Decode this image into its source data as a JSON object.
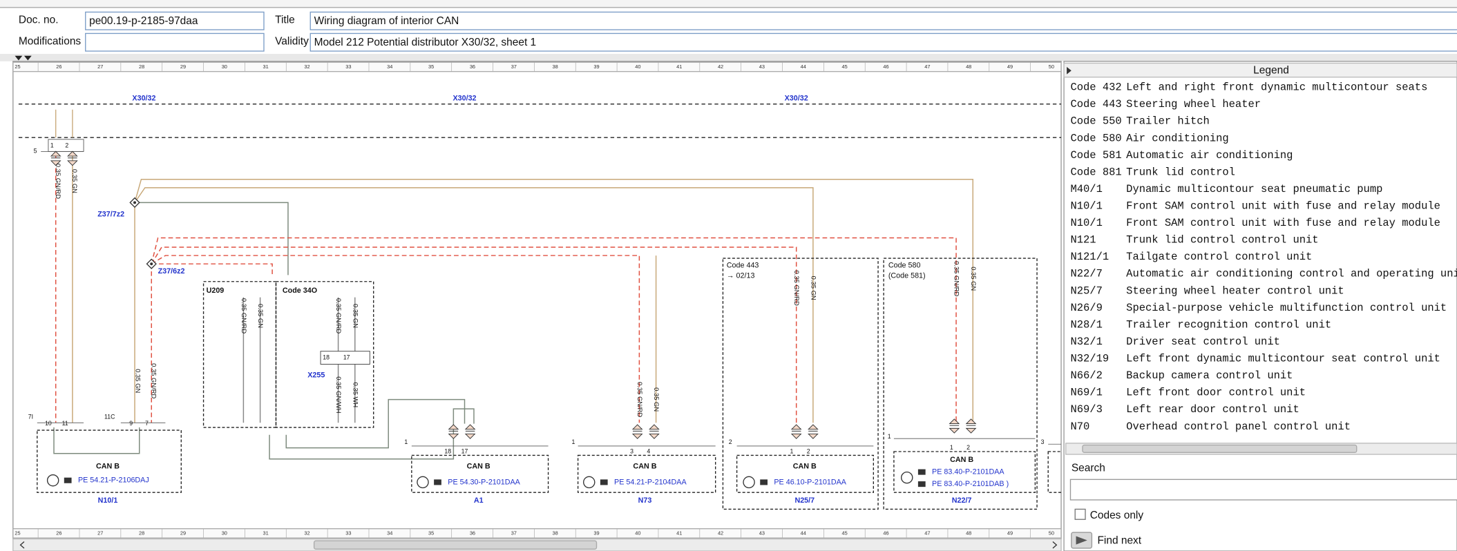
{
  "header": {
    "doc_no_label": "Doc. no.",
    "doc_no": "pe00.19-p-2185-97daa",
    "title_label": "Title",
    "title": "Wiring diagram of interior CAN",
    "modifications_label": "Modifications",
    "validity_label": "Validity",
    "validity": "Model 212 Potential distributor X30/32, sheet 1"
  },
  "ruler": [
    25,
    26,
    27,
    28,
    29,
    30,
    31,
    32,
    33,
    34,
    35,
    36,
    37,
    38,
    39,
    40,
    41,
    42,
    43,
    44,
    45,
    46,
    47,
    48,
    49,
    50
  ],
  "diagram": {
    "buses": [
      "X30/32",
      "X30/32",
      "X30/32"
    ],
    "nodes": [
      "Z37/7z2",
      "Z37/6z2"
    ],
    "groups": [
      {
        "label": "U209"
      },
      {
        "label": "Code 34O"
      },
      {
        "label": "Code 443",
        "ref": "→ 02/13"
      },
      {
        "label": "Code 580",
        "sub": "(Code 581)"
      }
    ],
    "connector": "X255",
    "wire_labels": [
      "0.35 GN/RD",
      "0.35 GN",
      "0.35 GN",
      "0.35 GN/RD",
      "0.35 GN/RD",
      "0.35 GN",
      "0.35 GN/RD",
      "0.35 GN",
      "0.35 GN/WH",
      "0.35 WH",
      "0.35 GN/RD",
      "0.35 GN",
      "0.35 GN/RD",
      "0.35 GN",
      "0.35 GN/RD",
      "0.35 GN"
    ],
    "pins": [
      "5",
      "1",
      "2",
      "7I",
      "11C",
      "10",
      "11",
      "9",
      "7",
      "18",
      "17",
      "1",
      "18",
      "17",
      "1",
      "3",
      "4",
      "2",
      "1",
      "2",
      "1",
      "1",
      "2",
      "3"
    ],
    "modules": [
      {
        "name": "N10/1",
        "bus": "CAN B",
        "refs": [
          "PE 54.21-P-2106DAJ"
        ]
      },
      {
        "name": "A1",
        "bus": "CAN B",
        "refs": [
          "PE 54.30-P-2101DAA"
        ]
      },
      {
        "name": "N73",
        "bus": "CAN B",
        "refs": [
          "PE 54.21-P-2104DAA"
        ]
      },
      {
        "name": "N25/7",
        "bus": "CAN B",
        "refs": [
          "PE 46.10-P-2101DAA"
        ]
      },
      {
        "name": "N22/7",
        "bus": "CAN B",
        "refs": [
          "PE 83.40-P-2101DAA",
          "PE 83.40-P-2101DAB )"
        ]
      }
    ]
  },
  "legend": {
    "title": "Legend",
    "items": [
      {
        "code": "Code 432",
        "text": "Left and right front dynamic multicontour seats"
      },
      {
        "code": "Code 443",
        "text": "Steering wheel heater"
      },
      {
        "code": "Code 550",
        "text": "Trailer hitch"
      },
      {
        "code": "Code 580",
        "text": "Air conditioning"
      },
      {
        "code": "Code 581",
        "text": "Automatic air conditioning"
      },
      {
        "code": "Code 881",
        "text": "Trunk lid control"
      },
      {
        "code": "M40/1",
        "text": "Dynamic multicontour seat pneumatic pump"
      },
      {
        "code": "N10/1",
        "text": "Front SAM control unit with fuse and relay module"
      },
      {
        "code": "N10/1",
        "text": "Front SAM control unit with fuse and relay module"
      },
      {
        "code": "N121",
        "text": "Trunk lid control control unit"
      },
      {
        "code": "N121/1",
        "text": "Tailgate control control unit"
      },
      {
        "code": "N22/7",
        "text": "Automatic air conditioning control and operating unit"
      },
      {
        "code": "N25/7",
        "text": "Steering wheel heater control unit"
      },
      {
        "code": "N26/9",
        "text": "Special-purpose vehicle multifunction control unit"
      },
      {
        "code": "N28/1",
        "text": "Trailer recognition control unit"
      },
      {
        "code": "N32/1",
        "text": "Driver seat control unit"
      },
      {
        "code": "N32/19",
        "text": "Left front dynamic multicontour seat control unit"
      },
      {
        "code": "N66/2",
        "text": "Backup camera control unit"
      },
      {
        "code": "N69/1",
        "text": "Left front door control unit"
      },
      {
        "code": "N69/3",
        "text": "Left rear door control unit"
      },
      {
        "code": "N70",
        "text": "Overhead control panel control unit"
      }
    ]
  },
  "search": {
    "label": "Search",
    "codes_only": "Codes only",
    "find_next": "Find next"
  }
}
